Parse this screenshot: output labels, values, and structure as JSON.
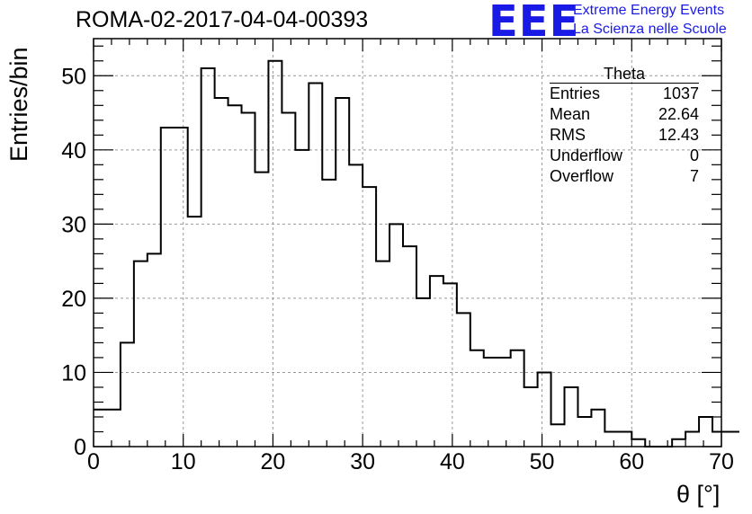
{
  "chart_data": {
    "type": "bar",
    "title": "ROMA-02-2017-04-04-00393",
    "xlabel": "θ [°]",
    "ylabel": "Entries/bin",
    "xlim": [
      0,
      70
    ],
    "ylim": [
      0,
      55
    ],
    "bin_width": 1.5,
    "x_start": 0,
    "values": [
      5,
      5,
      14,
      25,
      26,
      43,
      43,
      31,
      51,
      47,
      46,
      45,
      37,
      52,
      45,
      40,
      49,
      36,
      47,
      38,
      35,
      25,
      30,
      27,
      20,
      23,
      22,
      18,
      13,
      12,
      12,
      13,
      8,
      10,
      3,
      8,
      4,
      5,
      2,
      2,
      1,
      0,
      0,
      1,
      2,
      4,
      2,
      2
    ],
    "x_ticks": [
      "0",
      "10",
      "20",
      "30",
      "40",
      "50",
      "60",
      "70"
    ],
    "y_ticks": [
      "0",
      "10",
      "20",
      "30",
      "40",
      "50"
    ],
    "grid": true,
    "histogram_color": "#000000"
  },
  "logo": {
    "text": "EEE",
    "line1": "Extreme Energy Events",
    "line2": "La Scienza nelle Scuole",
    "color": "#1a1ae6"
  },
  "stats": {
    "title": "Theta",
    "rows": [
      {
        "label": "Entries",
        "value": "1037"
      },
      {
        "label": "Mean",
        "value": "22.64"
      },
      {
        "label": "RMS",
        "value": "12.43"
      },
      {
        "label": "Underflow",
        "value": "0"
      },
      {
        "label": "Overflow",
        "value": "7"
      }
    ]
  }
}
